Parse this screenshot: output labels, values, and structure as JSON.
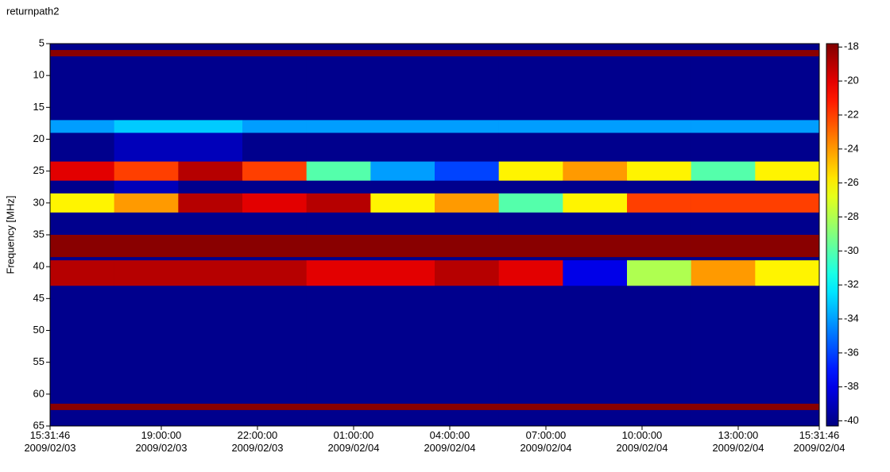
{
  "chart_data": {
    "type": "heatmap",
    "title": "returnpath2",
    "ylabel": "Frequency [MHz]",
    "xbins": [
      0,
      2,
      4,
      6,
      8,
      10,
      12,
      14,
      16,
      18,
      20,
      22,
      24
    ],
    "ybins": [
      5,
      6,
      7,
      17,
      19,
      23.5,
      26.5,
      28.5,
      31.5,
      35,
      38.5,
      39,
      43,
      61.5,
      62.5,
      65
    ],
    "z": [
      [
        -40,
        -40,
        -40,
        -40,
        -40,
        -40,
        -40,
        -40,
        -40,
        -40,
        -40,
        -40
      ],
      [
        -18,
        -18,
        -18,
        -18,
        -18,
        -18,
        -18,
        -18,
        -18,
        -18,
        -18,
        -18
      ],
      [
        -40,
        -40,
        -40,
        -40,
        -40,
        -40,
        -40,
        -40,
        -40,
        -40,
        -40,
        -40
      ],
      [
        -34,
        -33,
        -33,
        -34,
        -34,
        -34,
        -34,
        -34,
        -34,
        -34,
        -34,
        -34
      ],
      [
        -40,
        -39,
        -39,
        -40,
        -40,
        -40,
        -40,
        -40,
        -40,
        -40,
        -40,
        -40
      ],
      [
        -20,
        -22,
        -19,
        -22,
        -30,
        -34,
        -36,
        -26,
        -24,
        -26,
        -30,
        -26
      ],
      [
        -40,
        -39,
        -40,
        -40,
        -40,
        -40,
        -40,
        -40,
        -40,
        -40,
        -40,
        -40
      ],
      [
        -26,
        -24,
        -19,
        -20,
        -19,
        -26,
        -24,
        -30,
        -26,
        -22,
        -22,
        -22
      ],
      [
        -40,
        -40,
        -40,
        -40,
        -40,
        -40,
        -40,
        -40,
        -40,
        -40,
        -40,
        -40
      ],
      [
        -18,
        -18,
        -18,
        -18,
        -18,
        -18,
        -18,
        -18,
        -18,
        -18,
        -18,
        -18
      ],
      [
        -40,
        -40,
        -40,
        -40,
        -40,
        -40,
        -40,
        -40,
        -40,
        -40,
        -40,
        -40
      ],
      [
        -19,
        -19,
        -19,
        -19,
        -20,
        -20,
        -19,
        -20,
        -38,
        -28,
        -24,
        -26
      ],
      [
        -40,
        -40,
        -40,
        -40,
        -40,
        -40,
        -40,
        -40,
        -40,
        -40,
        -40,
        -40
      ],
      [
        -18,
        -18,
        -18,
        -18,
        -18,
        -18,
        -18,
        -18,
        -18,
        -18,
        -18,
        -18
      ],
      [
        -40,
        -40,
        -40,
        -40,
        -40,
        -40,
        -40,
        -40,
        -40,
        -40,
        -40,
        -40
      ]
    ],
    "xlim": [
      0,
      24
    ],
    "xticks": [
      {
        "value": 0,
        "label": "15:31:46\n2009/02/03"
      },
      {
        "value": 3.4706,
        "label": "19:00:00\n2009/02/03"
      },
      {
        "value": 6.4706,
        "label": "22:00:00\n2009/02/03"
      },
      {
        "value": 9.4706,
        "label": "01:00:00\n2009/02/04"
      },
      {
        "value": 12.4706,
        "label": "04:00:00\n2009/02/04"
      },
      {
        "value": 15.4706,
        "label": "07:00:00\n2009/02/04"
      },
      {
        "value": 18.4706,
        "label": "10:00:00\n2009/02/04"
      },
      {
        "value": 21.4706,
        "label": "13:00:00\n2009/02/04"
      },
      {
        "value": 24,
        "label": "15:31:46\n2009/02/04"
      }
    ],
    "ylim": [
      65,
      5
    ],
    "yticks": [
      5,
      10,
      15,
      20,
      25,
      30,
      35,
      40,
      45,
      50,
      55,
      60,
      65
    ],
    "colormap": "jet",
    "zlim": [
      -40.3,
      -17.8
    ],
    "zticks": [
      -18,
      -20,
      -22,
      -24,
      -26,
      -28,
      -30,
      -32,
      -34,
      -36,
      -38,
      -40
    ]
  }
}
